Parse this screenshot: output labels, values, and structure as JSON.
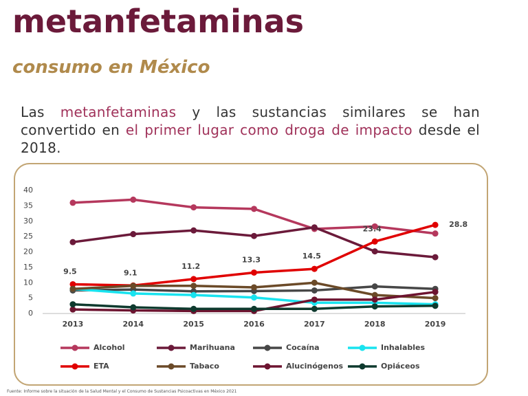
{
  "header": {
    "title": "metanfetaminas",
    "subtitle": "consumo en México"
  },
  "paragraph": [
    {
      "text": "Las ",
      "highlight": false
    },
    {
      "text": "metanfetaminas",
      "highlight": true
    },
    {
      "text": " y las sustancias similares se han convertido en ",
      "highlight": false
    },
    {
      "text": "el primer lugar como droga de impacto",
      "highlight": true
    },
    {
      "text": " desde el 2018.",
      "highlight": false
    }
  ],
  "footer": "Fuente: Informe sobre la situación de la Salud Mental y el Consumo de Sustancias Psicoactivas en México 2021",
  "chart_data": {
    "type": "line",
    "categories": [
      "2013",
      "2014",
      "2015",
      "2016",
      "2017",
      "2018",
      "2019"
    ],
    "ylim": [
      0,
      40
    ],
    "yticks": [
      0,
      5,
      10,
      15,
      20,
      25,
      30,
      35,
      40
    ],
    "grid": false,
    "legend": "bottom",
    "series": [
      {
        "name": "Alcohol",
        "color": "#b5385d",
        "values": [
          36,
          37,
          34.5,
          34,
          27.5,
          28.3,
          26
        ]
      },
      {
        "name": "Marihuana",
        "color": "#6b1a3a",
        "values": [
          23.2,
          25.8,
          27,
          25.2,
          28,
          20.2,
          18.3
        ]
      },
      {
        "name": "Cocaína",
        "color": "#474747",
        "values": [
          7.5,
          7.8,
          7.2,
          7.3,
          7.5,
          8.8,
          8
        ]
      },
      {
        "name": "Inhalables",
        "color": "#19e3ef",
        "values": [
          8,
          6.5,
          6,
          5.2,
          3.5,
          3.5,
          3
        ]
      },
      {
        "name": "ETA",
        "color": "#e00000",
        "values": [
          9.5,
          9.1,
          11.2,
          13.3,
          14.5,
          23.4,
          28.8
        ],
        "show_labels": true
      },
      {
        "name": "Tabaco",
        "color": "#6b4a28",
        "values": [
          8,
          9,
          9,
          8.5,
          10,
          6,
          5
        ]
      },
      {
        "name": "Alucinógenos",
        "color": "#6d1430",
        "values": [
          1.3,
          1,
          0.8,
          0.8,
          4.5,
          4.5,
          7
        ]
      },
      {
        "name": "Opiáceos",
        "color": "#0e3a2e",
        "values": [
          3,
          2,
          1.5,
          1.5,
          1.5,
          2.3,
          2.5
        ]
      }
    ]
  }
}
